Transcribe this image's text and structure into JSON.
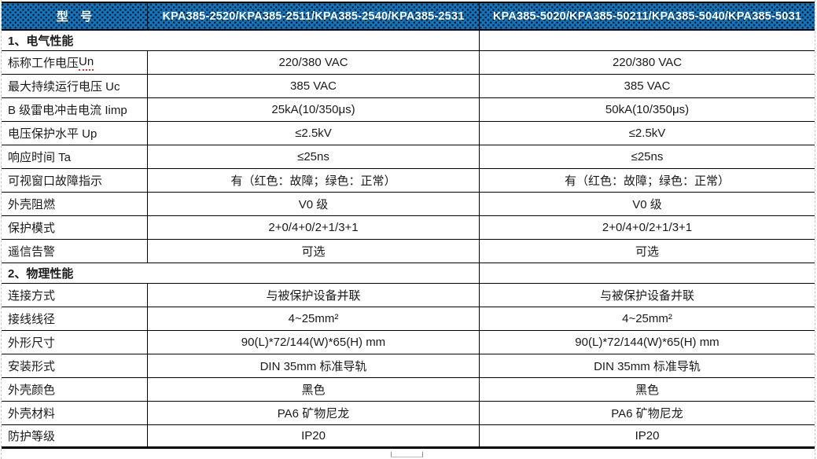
{
  "colors": {
    "header_bg": "#0F75BD",
    "header_dot": "#071220",
    "header_text": "#FFFFFF",
    "grid_line": "#000000",
    "page_dash": "#C6C6C6",
    "spell_underline": "#D9372A",
    "body_text": "#1A1A1A"
  },
  "header": {
    "model_label": "型　号",
    "series_a": "KPA385-2520/KPA385-2511/KPA385-2540/KPA385-2531",
    "series_b": "KPA385-5020/KPA385-50211/KPA385-5040/KPA385-5031"
  },
  "sections": [
    {
      "title": "1、电气性能",
      "rows": [
        {
          "label": "标称工作电压 ",
          "label_mark": "Un",
          "a": "220/380 VAC",
          "b": "220/380 VAC"
        },
        {
          "label": "最大持续运行电压 Uc",
          "label_mark": "",
          "a": "385 VAC",
          "b": "385 VAC"
        },
        {
          "label": "B 级雷电冲击电流  Iimp",
          "label_mark": "",
          "a": "25kA(10/350μs)",
          "b": "50kA(10/350μs)"
        },
        {
          "label": "电压保护水平 Up",
          "label_mark": "",
          "a": "≤2.5kV",
          "b": "≤2.5kV"
        },
        {
          "label": "响应时间 Ta",
          "label_mark": "",
          "a": "≤25ns",
          "b": "≤25ns"
        },
        {
          "label": "可视窗口故障指示",
          "label_mark": "",
          "a": "有（红色：故障；绿色：正常）",
          "b": "有（红色：故障；绿色：正常）"
        },
        {
          "label": "外壳阻燃",
          "label_mark": "",
          "a": "V0 级",
          "b": "V0 级"
        },
        {
          "label": "保护模式",
          "label_mark": "",
          "a": "2+0/4+0/2+1/3+1",
          "b": "2+0/4+0/2+1/3+1"
        },
        {
          "label": "遥信告警",
          "label_mark": "",
          "a": "可选",
          "b": "可选"
        }
      ]
    },
    {
      "title": "2、物理性能",
      "rows": [
        {
          "label": "连接方式",
          "label_mark": "",
          "a": "与被保护设备并联",
          "b": "与被保护设备并联"
        },
        {
          "label": "接线线径",
          "label_mark": "",
          "a": "4~25mm²",
          "b": "4~25mm²"
        },
        {
          "label": "外形尺寸",
          "label_mark": "",
          "a": "90(L)*72/144(W)*65(H) mm",
          "b": "90(L)*72/144(W)*65(H) mm"
        },
        {
          "label": "安装形式",
          "label_mark": "",
          "a": "DIN 35mm 标准导轨",
          "b": "DIN 35mm 标准导轨"
        },
        {
          "label": "外壳颜色",
          "label_mark": "",
          "a": "黑色",
          "b": "黑色"
        },
        {
          "label": "外壳材料",
          "label_mark": "",
          "a": "PA6 矿物尼龙",
          "b": "PA6 矿物尼龙"
        },
        {
          "label": "防护等级",
          "label_mark": "",
          "a": "IP20",
          "b": "IP20"
        }
      ]
    }
  ]
}
